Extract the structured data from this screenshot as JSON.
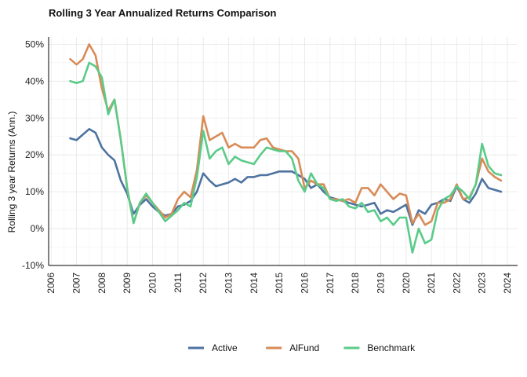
{
  "chart_data": {
    "type": "line",
    "title": "Rolling 3 Year Annualized Returns Comparison",
    "xlabel": "",
    "ylabel": "Rolling 3 year Returns (Ann.)",
    "xlim": [
      2005.9,
      2024.4
    ],
    "ylim": [
      -10,
      52
    ],
    "x_ticks": [
      "2006",
      "2007",
      "2008",
      "2009",
      "2010",
      "2011",
      "2012",
      "2013",
      "2014",
      "2015",
      "2016",
      "2017",
      "2018",
      "2019",
      "2020",
      "2021",
      "2022",
      "2023",
      "2024"
    ],
    "y_ticks": [
      {
        "value": -10,
        "label": "-10%"
      },
      {
        "value": 0,
        "label": "0%"
      },
      {
        "value": 10,
        "label": "10%"
      },
      {
        "value": 20,
        "label": "20%"
      },
      {
        "value": 30,
        "label": "30%"
      },
      {
        "value": 40,
        "label": "40%"
      },
      {
        "value": 50,
        "label": "50%"
      }
    ],
    "grid": true,
    "legend_position": "bottom",
    "x": [
      2006.75,
      2007.0,
      2007.25,
      2007.5,
      2007.75,
      2008.0,
      2008.25,
      2008.5,
      2008.75,
      2009.0,
      2009.25,
      2009.5,
      2009.75,
      2010.0,
      2010.25,
      2010.5,
      2010.75,
      2011.0,
      2011.25,
      2011.5,
      2011.75,
      2012.0,
      2012.25,
      2012.5,
      2012.75,
      2013.0,
      2013.25,
      2013.5,
      2013.75,
      2014.0,
      2014.25,
      2014.5,
      2014.75,
      2015.0,
      2015.25,
      2015.5,
      2015.75,
      2016.0,
      2016.25,
      2016.5,
      2016.75,
      2017.0,
      2017.25,
      2017.5,
      2017.75,
      2018.0,
      2018.25,
      2018.5,
      2018.75,
      2019.0,
      2019.25,
      2019.5,
      2019.75,
      2020.0,
      2020.25,
      2020.5,
      2020.75,
      2021.0,
      2021.25,
      2021.5,
      2021.75,
      2022.0,
      2022.25,
      2022.5,
      2022.75,
      2023.0,
      2023.25,
      2023.5,
      2023.75
    ],
    "series": [
      {
        "name": "Active",
        "color": "#4e73a0",
        "values": [
          24.5,
          24.0,
          25.5,
          27.0,
          26.0,
          22.0,
          20.0,
          18.5,
          13.0,
          9.5,
          4.0,
          6.5,
          8.0,
          6.0,
          4.5,
          3.5,
          4.0,
          6.0,
          6.5,
          7.5,
          10.0,
          15.0,
          13.0,
          11.5,
          12.0,
          12.5,
          13.5,
          12.5,
          14.0,
          14.0,
          14.5,
          14.5,
          15.0,
          15.5,
          15.5,
          15.5,
          14.5,
          13.5,
          11.0,
          12.0,
          10.0,
          8.5,
          8.0,
          7.5,
          7.0,
          6.5,
          6.0,
          6.5,
          7.0,
          4.0,
          5.0,
          4.5,
          5.5,
          6.5,
          1.0,
          5.0,
          4.0,
          6.5,
          7.0,
          8.0,
          7.5,
          11.5,
          8.0,
          7.0,
          9.5,
          13.5,
          11.0,
          10.5,
          10.0
        ]
      },
      {
        "name": "AlFund",
        "color": "#d88b57",
        "values": [
          46.0,
          44.5,
          46.0,
          50.0,
          47.0,
          38.0,
          32.0,
          35.0,
          24.0,
          11.0,
          1.5,
          7.0,
          9.0,
          7.0,
          5.0,
          3.0,
          4.0,
          8.0,
          10.0,
          8.5,
          16.0,
          30.5,
          24.0,
          25.0,
          26.0,
          22.0,
          23.0,
          22.0,
          22.0,
          22.0,
          24.0,
          24.5,
          22.0,
          21.5,
          21.0,
          21.0,
          19.0,
          11.0,
          13.0,
          12.0,
          12.0,
          8.0,
          8.0,
          7.5,
          8.0,
          7.0,
          11.0,
          11.0,
          9.0,
          12.0,
          10.0,
          8.0,
          9.5,
          9.0,
          1.5,
          4.0,
          1.0,
          2.0,
          7.0,
          7.0,
          8.0,
          12.0,
          8.0,
          8.5,
          12.0,
          19.0,
          15.5,
          14.0,
          13.0
        ]
      },
      {
        "name": "Benchmark",
        "color": "#5acb88",
        "values": [
          40.0,
          39.5,
          40.0,
          45.0,
          44.0,
          41.0,
          31.0,
          35.0,
          24.0,
          11.0,
          1.5,
          7.0,
          9.5,
          7.0,
          4.5,
          2.0,
          3.5,
          5.0,
          7.0,
          6.0,
          14.0,
          26.5,
          19.0,
          21.0,
          22.0,
          17.5,
          19.5,
          18.5,
          18.0,
          17.5,
          20.0,
          22.0,
          21.5,
          21.0,
          21.0,
          19.0,
          13.0,
          10.0,
          15.0,
          12.0,
          11.0,
          8.0,
          7.5,
          8.0,
          6.0,
          5.5,
          7.0,
          4.5,
          5.0,
          2.0,
          3.0,
          1.0,
          3.0,
          3.0,
          -6.5,
          0.0,
          -4.0,
          -3.0,
          5.0,
          8.0,
          9.0,
          11.5,
          10.0,
          8.0,
          12.0,
          23.0,
          17.0,
          15.0,
          14.5
        ]
      }
    ]
  }
}
